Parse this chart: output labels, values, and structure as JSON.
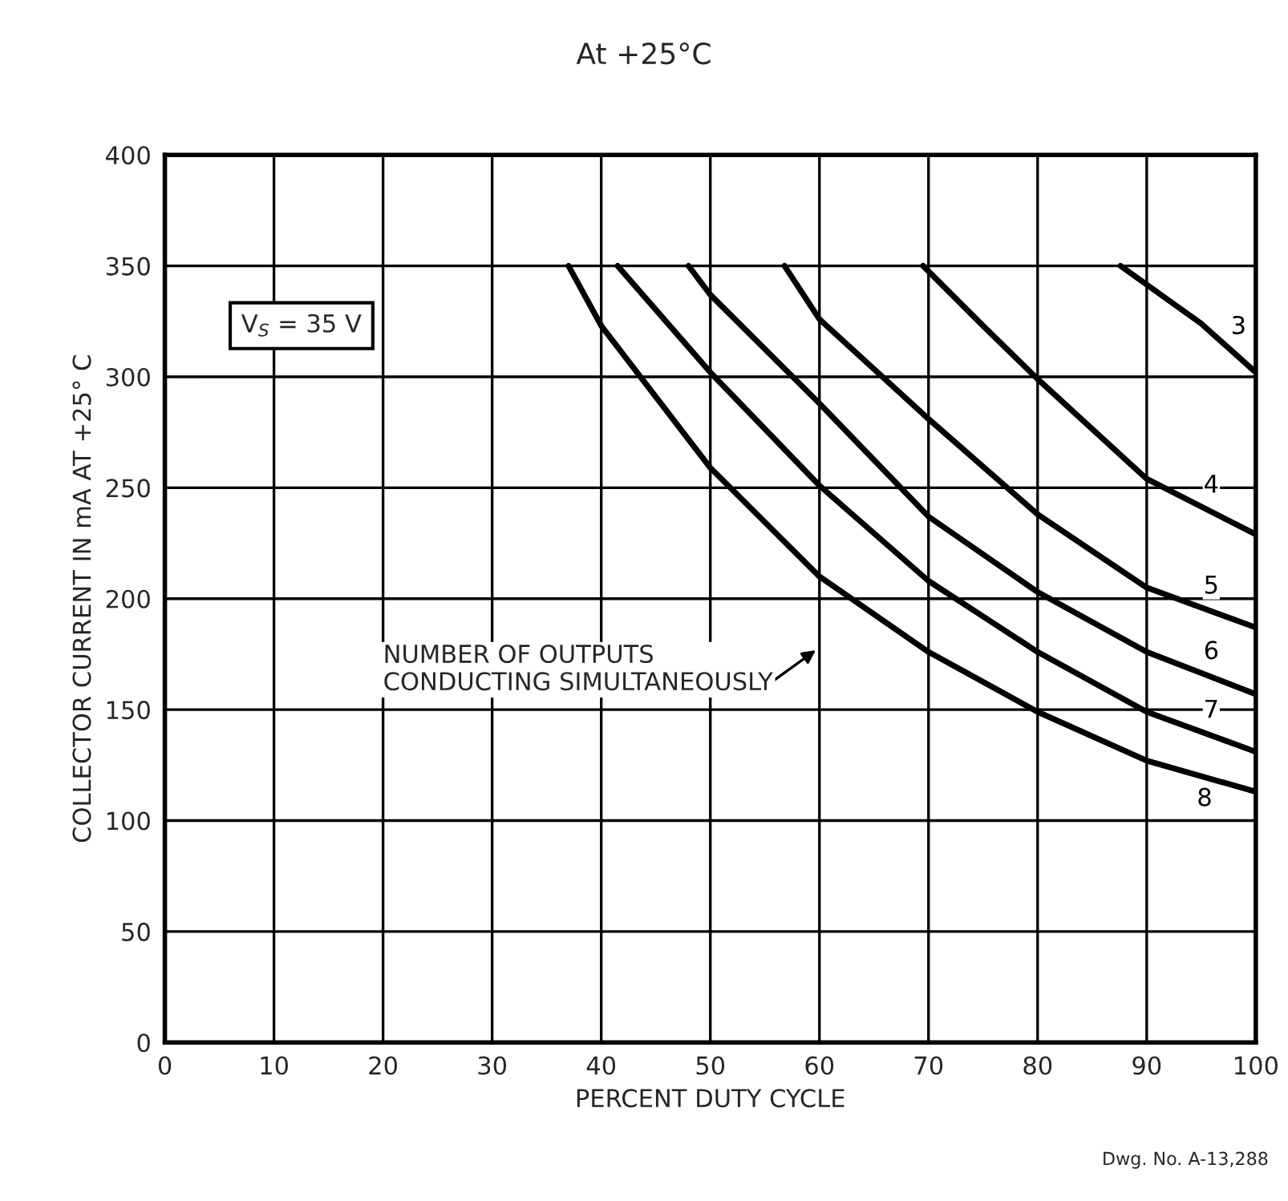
{
  "chart_data": {
    "type": "line",
    "title": "At +25°C",
    "xlabel": "PERCENT DUTY CYCLE",
    "ylabel": "COLLECTOR CURRENT IN mA AT +25° C",
    "xlim": [
      0,
      100
    ],
    "ylim": [
      0,
      400
    ],
    "xticks": [
      0,
      10,
      20,
      30,
      40,
      50,
      60,
      70,
      80,
      90,
      100
    ],
    "yticks": [
      0,
      50,
      100,
      150,
      200,
      250,
      300,
      350,
      400
    ],
    "grid": true,
    "marker": "none",
    "line_style": "solid",
    "series": [
      {
        "name": "3",
        "color": "#000000",
        "x": [
          87.6,
          95,
          100
        ],
        "values": [
          350,
          324,
          302
        ]
      },
      {
        "name": "4",
        "color": "#000000",
        "x": [
          69.5,
          75,
          80,
          90,
          100
        ],
        "values": [
          350,
          323,
          299,
          254,
          229
        ]
      },
      {
        "name": "5",
        "color": "#000000",
        "x": [
          56.8,
          60,
          70,
          80,
          90,
          100
        ],
        "values": [
          350,
          326,
          281,
          238,
          205,
          187
        ]
      },
      {
        "name": "6",
        "color": "#000000",
        "x": [
          48,
          50,
          60,
          70,
          80,
          90,
          100
        ],
        "values": [
          350,
          337,
          288,
          237,
          203,
          176,
          157
        ]
      },
      {
        "name": "7",
        "color": "#000000",
        "x": [
          41.5,
          50,
          60,
          70,
          80,
          90,
          100
        ],
        "values": [
          350,
          302,
          251,
          208,
          176,
          149,
          131
        ]
      },
      {
        "name": "8",
        "color": "#000000",
        "x": [
          37,
          40,
          50,
          60,
          70,
          80,
          90,
          100
        ],
        "values": [
          350,
          323,
          259,
          210,
          176,
          149,
          127,
          113
        ]
      }
    ],
    "annotations": [
      "V$_{S}$ = 35 V",
      "NUMBER OF OUTPUTS\nCONDUCTING SIMULTANEOUSLY",
      "Dwg. No. A-13,288"
    ]
  }
}
